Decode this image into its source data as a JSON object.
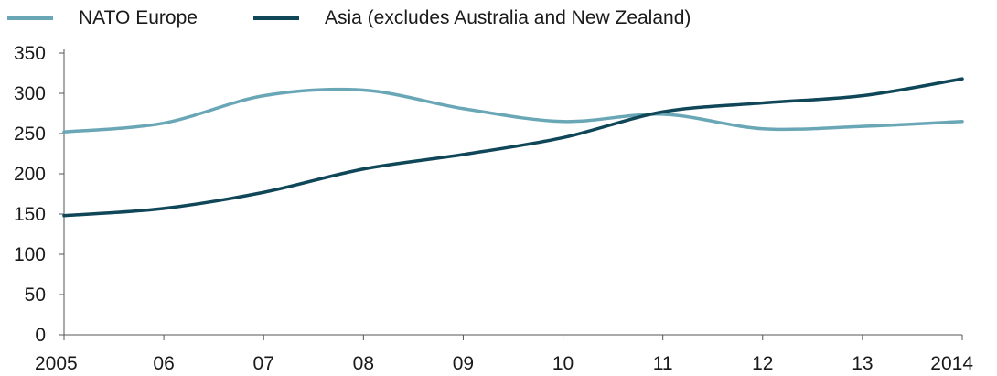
{
  "chart_data": {
    "type": "line",
    "title": "",
    "xlabel": "",
    "ylabel": "",
    "categories": [
      "2005",
      "06",
      "07",
      "08",
      "09",
      "10",
      "11",
      "12",
      "13",
      "2014"
    ],
    "series": [
      {
        "name": "NATO Europe",
        "color": "#6aa7b6",
        "values": [
          252,
          263,
          297,
          304,
          281,
          265,
          274,
          256,
          259,
          265
        ]
      },
      {
        "name": "Asia (excludes Australia and New Zealand)",
        "color": "#0f4658",
        "values": [
          148,
          157,
          177,
          206,
          224,
          245,
          277,
          288,
          297,
          318
        ]
      }
    ],
    "ylim": [
      0,
      350
    ],
    "yticks": [
      0,
      50,
      100,
      150,
      200,
      250,
      300,
      350
    ],
    "grid": false,
    "legend": "top-left"
  }
}
